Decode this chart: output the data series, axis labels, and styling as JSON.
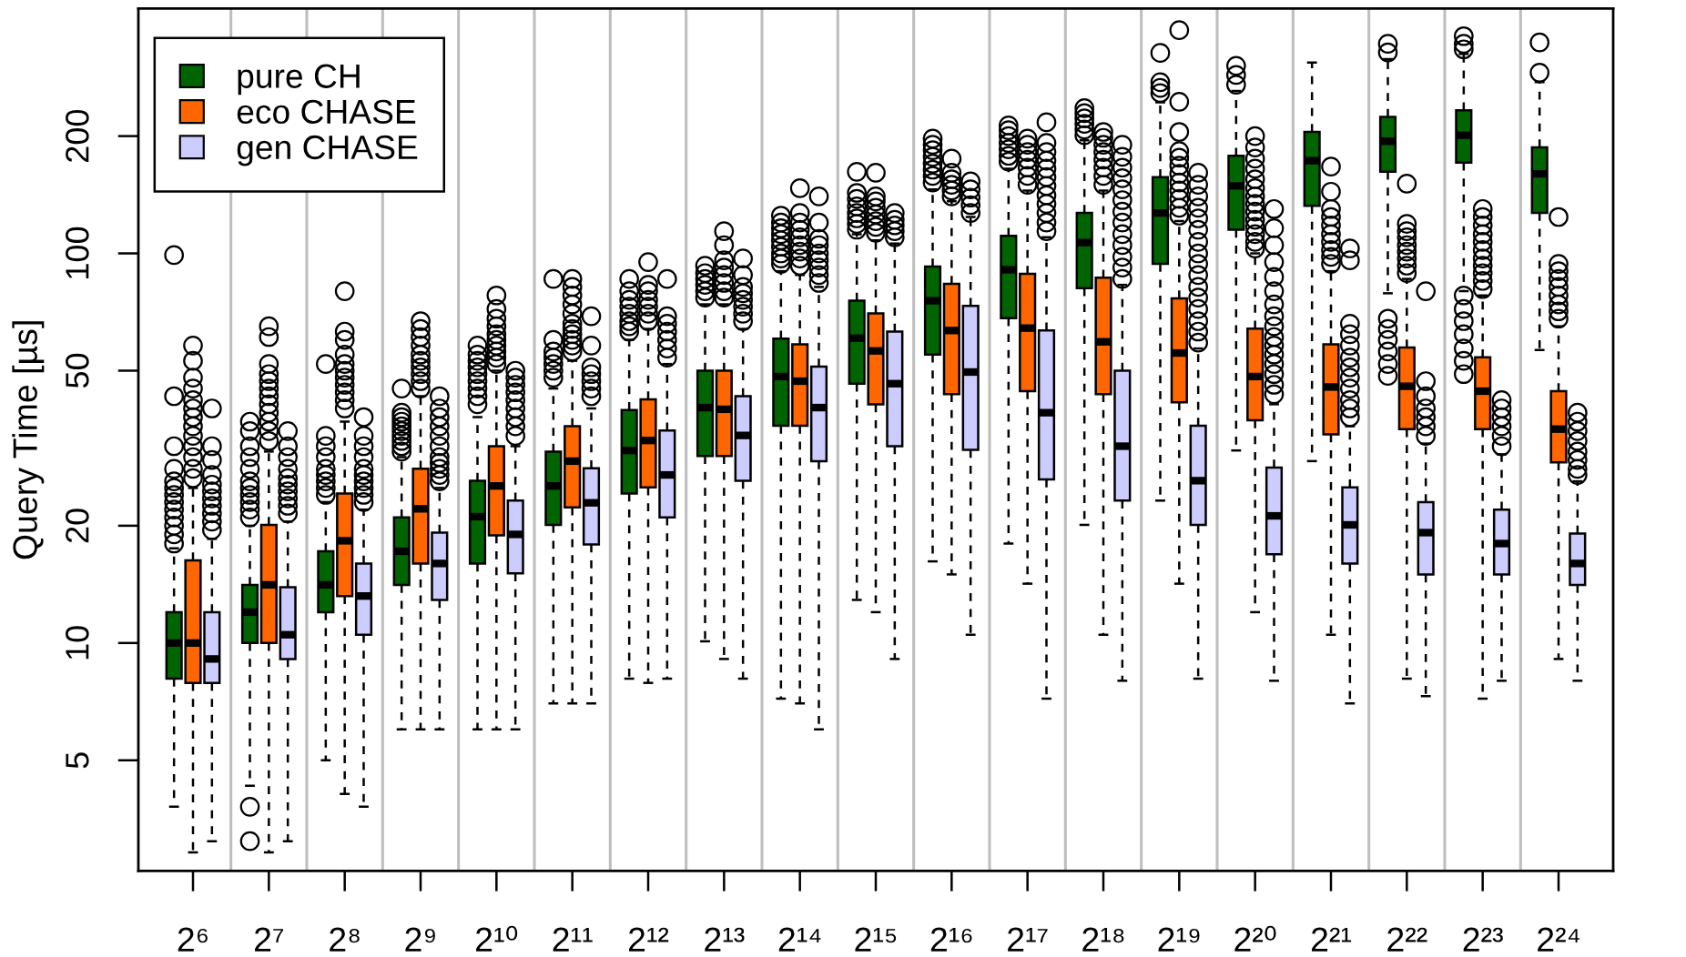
{
  "chart_data": {
    "type": "box",
    "ylabel": "Query Time [µs]",
    "log": true,
    "ylim": [
      2.6,
      425
    ],
    "yticks": [
      5,
      10,
      20,
      50,
      100,
      200
    ],
    "grid": "x",
    "legend": "top left",
    "line_style": "dashed",
    "marker": "circle",
    "categories": [
      "2⁶",
      "2⁷",
      "2⁸",
      "2⁹",
      "2¹⁰",
      "2¹¹",
      "2¹²",
      "2¹³",
      "2¹⁴",
      "2¹⁵",
      "2¹⁶",
      "2¹⁷",
      "2¹⁸",
      "2¹⁹",
      "2²⁰",
      "2²¹",
      "2²²",
      "2²³",
      "2²⁴"
    ],
    "series": [
      {
        "name": "pure CH",
        "color": "#006400",
        "boxes": [
          {
            "low": 3.8,
            "q1": 8.1,
            "median": 10,
            "q3": 12,
            "high": 17.5,
            "outliers": [
              18,
              19,
              20,
              21,
              22,
              23,
              24,
              25,
              26,
              28,
              32,
              43,
              99
            ]
          },
          {
            "low": 4.3,
            "q1": 10,
            "median": 12,
            "q3": 14.1,
            "high": 20,
            "outliers": [
              3.1,
              3.8,
              21,
              22,
              23,
              24,
              25,
              26,
              28,
              30,
              32,
              35,
              37
            ]
          },
          {
            "low": 5.0,
            "q1": 12,
            "median": 14.1,
            "q3": 17.2,
            "high": 23,
            "outliers": [
              24,
              25,
              26,
              27,
              28,
              30,
              32,
              34,
              52
            ]
          },
          {
            "low": 6.0,
            "q1": 14.1,
            "median": 17.2,
            "q3": 21,
            "high": 30,
            "outliers": [
              31,
              32,
              33,
              34,
              35,
              36,
              37,
              38,
              39,
              45
            ]
          },
          {
            "low": 6.0,
            "q1": 16,
            "median": 21.1,
            "q3": 26.1,
            "high": 38,
            "outliers": [
              41,
              43,
              45,
              47,
              49,
              51,
              53,
              55,
              58
            ]
          },
          {
            "low": 7.0,
            "q1": 20.1,
            "median": 25.3,
            "q3": 31,
            "high": 45,
            "outliers": [
              48,
              50,
              52,
              54,
              56,
              60,
              86
            ]
          },
          {
            "low": 8.1,
            "q1": 24.2,
            "median": 31.2,
            "q3": 39.6,
            "high": 60,
            "outliers": [
              63,
              65,
              67,
              70,
              73,
              76,
              80,
              86
            ]
          },
          {
            "low": 10.1,
            "q1": 30.2,
            "median": 40.2,
            "q3": 50,
            "high": 74,
            "outliers": [
              77,
              80,
              83,
              86,
              89,
              93
            ]
          },
          {
            "low": 7.2,
            "q1": 36.1,
            "median": 48.3,
            "q3": 60.4,
            "high": 90,
            "outliers": [
              94,
              97,
              100,
              104,
              108,
              112,
              116,
              120,
              125
            ]
          },
          {
            "low": 12.9,
            "q1": 46.3,
            "median": 60.6,
            "q3": 75.6,
            "high": 112,
            "outliers": [
              115,
              119,
              123,
              127,
              132,
              138,
              143,
              162
            ]
          },
          {
            "low": 16.2,
            "q1": 55,
            "median": 75.6,
            "q3": 92.5,
            "high": 146,
            "outliers": [
              152,
              158,
              164,
              170,
              177,
              184,
              190,
              197
            ]
          },
          {
            "low": 18,
            "q1": 68.2,
            "median": 90.8,
            "q3": 111,
            "high": 165,
            "outliers": [
              172,
              178,
              185,
              192,
              200,
              207,
              213
            ]
          },
          {
            "low": 20.1,
            "q1": 81.4,
            "median": 106.6,
            "q3": 127,
            "high": 195,
            "outliers": [
              201,
              208,
              215,
              222,
              229,
              236
            ]
          },
          {
            "low": 23.2,
            "q1": 94,
            "median": 127,
            "q3": 157,
            "high": 244,
            "outliers": [
              258,
              266,
              275,
              327
            ]
          },
          {
            "low": 31.2,
            "q1": 115,
            "median": 149,
            "q3": 178,
            "high": 261,
            "outliers": [
              271,
              287,
              303
            ]
          },
          {
            "low": 29.3,
            "q1": 132.5,
            "median": 173,
            "q3": 205,
            "high": 309
          },
          {
            "low": 79,
            "q1": 162,
            "median": 194,
            "q3": 224,
            "high": 315,
            "outliers": [
              48.5,
              52,
              56,
              60,
              64,
              68,
              328,
              345
            ]
          },
          {
            "low": 80,
            "q1": 171,
            "median": 201,
            "q3": 233,
            "high": 325,
            "outliers": [
              49,
              53,
              57,
              62,
              67,
              72,
              78,
              334,
              345,
              361
            ]
          },
          {
            "low": 56.5,
            "q1": 127,
            "median": 160,
            "q3": 187,
            "high": 275,
            "outliers": [
              291,
              348
            ]
          }
        ]
      },
      {
        "name": "eco CHASE",
        "color": "#ff6600",
        "boxes": [
          {
            "low": 2.9,
            "q1": 7.9,
            "median": 10,
            "q3": 16.3,
            "high": 25,
            "outliers": [
              26.5,
              28,
              30,
              32,
              34,
              36,
              38,
              40,
              42,
              45,
              48,
              53,
              58
            ]
          },
          {
            "low": 2.9,
            "q1": 10,
            "median": 14.1,
            "q3": 20.1,
            "high": 31,
            "outliers": [
              33,
              35,
              37,
              39,
              41,
              43,
              45,
              47,
              49,
              52,
              61,
              65
            ]
          },
          {
            "low": 4.1,
            "q1": 13.2,
            "median": 18.3,
            "q3": 24.2,
            "high": 37,
            "outliers": [
              40,
              42,
              44,
              46,
              48,
              50,
              52,
              55,
              60,
              63,
              80
            ]
          },
          {
            "low": 6.0,
            "q1": 16,
            "median": 22.1,
            "q3": 28,
            "high": 43,
            "outliers": [
              45,
              47,
              49,
              51,
              53,
              55,
              58,
              61,
              64,
              67
            ]
          },
          {
            "low": 6.0,
            "q1": 18.9,
            "median": 25.3,
            "q3": 32,
            "high": 50,
            "outliers": [
              52,
              54,
              56,
              58,
              60,
              62,
              65,
              68,
              72,
              78
            ]
          },
          {
            "low": 7.0,
            "q1": 22.3,
            "median": 29.3,
            "q3": 36,
            "high": 53,
            "outliers": [
              56,
              58,
              60,
              62,
              64,
              66,
              70,
              74,
              78,
              82,
              86
            ]
          },
          {
            "low": 7.9,
            "q1": 25.1,
            "median": 33.1,
            "q3": 42.2,
            "high": 64,
            "outliers": [
              67,
              70,
              73,
              76,
              80,
              83,
              95
            ]
          },
          {
            "low": 9.1,
            "q1": 30.2,
            "median": 39.8,
            "q3": 50,
            "high": 74,
            "outliers": [
              77,
              80,
              84,
              88,
              92,
              96,
              105,
              114
            ]
          },
          {
            "low": 7.0,
            "q1": 36.1,
            "median": 47,
            "q3": 58.4,
            "high": 88,
            "outliers": [
              93,
              97,
              101,
              105,
              110,
              115,
              120,
              127,
              147
            ]
          },
          {
            "low": 12,
            "q1": 41,
            "median": 56.2,
            "q3": 70.1,
            "high": 108,
            "outliers": [
              113,
              117,
              121,
              126,
              131,
              136,
              140,
              161
            ]
          },
          {
            "low": 15,
            "q1": 43.5,
            "median": 63.4,
            "q3": 83.5,
            "high": 136,
            "outliers": [
              140,
              145,
              150,
              155,
              161,
              175
            ]
          },
          {
            "low": 14.2,
            "q1": 44.3,
            "median": 64.3,
            "q3": 88.6,
            "high": 145,
            "outliers": [
              150,
              158,
              166,
              174,
              182,
              190,
              197
            ]
          },
          {
            "low": 10.5,
            "q1": 43.5,
            "median": 59.3,
            "q3": 86.6,
            "high": 145,
            "outliers": [
              150,
              158,
              166,
              174,
              182,
              190,
              198,
              205
            ]
          },
          {
            "low": 14.2,
            "q1": 41.5,
            "median": 55.5,
            "q3": 76.6,
            "high": 121,
            "outliers": [
              125,
              131,
              138,
              145,
              152,
              160,
              168,
              176,
              183,
              205,
              245,
              374
            ]
          },
          {
            "low": 12,
            "q1": 37.3,
            "median": 48.3,
            "q3": 64.1,
            "high": 100,
            "outliers": [
              103,
              107,
              112,
              117,
              122,
              128,
              134,
              140,
              147,
              155,
              165,
              175,
              187,
              200
            ]
          },
          {
            "low": 10.5,
            "q1": 34.3,
            "median": 45.4,
            "q3": 58.4,
            "high": 90,
            "outliers": [
              94,
              98,
              102,
              107,
              112,
              118,
              124,
              130,
              144,
              167
            ]
          },
          {
            "low": 8.1,
            "q1": 35.4,
            "median": 45.6,
            "q3": 57.3,
            "high": 86,
            "outliers": [
              89,
              93,
              97,
              101,
              105,
              110,
              114,
              119,
              151
            ]
          },
          {
            "low": 7.2,
            "q1": 35.4,
            "median": 44.3,
            "q3": 54.1,
            "high": 78,
            "outliers": [
              81,
              85,
              89,
              93,
              97,
              102,
              107,
              112,
              118,
              124,
              130
            ]
          },
          {
            "low": 9.1,
            "q1": 29.1,
            "median": 35.4,
            "q3": 44.3,
            "high": 65,
            "outliers": [
              68,
              71,
              74,
              78,
              82,
              86,
              90,
              94,
              124
            ]
          }
        ]
      },
      {
        "name": "gen CHASE",
        "color": "#ccccff",
        "boxes": [
          {
            "low": 3.1,
            "q1": 7.9,
            "median": 9.1,
            "q3": 12,
            "high": 18.5,
            "outliers": [
              19.5,
              20.5,
              21.5,
              22.5,
              23.5,
              24.5,
              25.5,
              27,
              29.5,
              32,
              40
            ]
          },
          {
            "low": 3.1,
            "q1": 9.1,
            "median": 10.5,
            "q3": 13.9,
            "high": 20.5,
            "outliers": [
              21.5,
              22.5,
              23.5,
              24.5,
              25.5,
              26.5,
              28,
              30,
              32,
              35
            ]
          },
          {
            "low": 3.8,
            "q1": 10.5,
            "median": 13.2,
            "q3": 16,
            "high": 22,
            "outliers": [
              23,
              24,
              25,
              26,
              27,
              28,
              30,
              32,
              34,
              38
            ]
          },
          {
            "low": 6.0,
            "q1": 12.9,
            "median": 16,
            "q3": 19.2,
            "high": 25,
            "outliers": [
              26,
              27,
              28,
              29,
              30,
              32,
              34,
              36,
              38,
              40,
              43
            ]
          },
          {
            "low": 6.0,
            "q1": 15.1,
            "median": 19,
            "q3": 23.2,
            "high": 32,
            "outliers": [
              34,
              36,
              38,
              40,
              42,
              44,
              46,
              48,
              50
            ]
          },
          {
            "low": 7.0,
            "q1": 17.9,
            "median": 22.9,
            "q3": 28.1,
            "high": 40,
            "outliers": [
              43,
              45,
              47,
              49,
              51,
              58,
              69
            ]
          },
          {
            "low": 8.1,
            "q1": 21,
            "median": 27,
            "q3": 35.1,
            "high": 52,
            "outliers": [
              54,
              57,
              60,
              63,
              66,
              69,
              86
            ]
          },
          {
            "low": 8.1,
            "q1": 26.1,
            "median": 34.1,
            "q3": 43,
            "high": 64,
            "outliers": [
              67,
              70,
              73,
              76,
              79,
              82,
              88,
              97
            ]
          },
          {
            "low": 6.0,
            "q1": 29.3,
            "median": 40.2,
            "q3": 51.2,
            "high": 82,
            "outliers": [
              84,
              88,
              92,
              96,
              100,
              105,
              109,
              120,
              140
            ]
          },
          {
            "low": 9.1,
            "q1": 32,
            "median": 46.3,
            "q3": 63,
            "high": 106,
            "outliers": [
              110,
              114,
              118,
              122,
              127
            ]
          },
          {
            "low": 10.5,
            "q1": 31.3,
            "median": 49.6,
            "q3": 73.3,
            "high": 124,
            "outliers": [
              127,
              133,
              139,
              146,
              153
            ]
          },
          {
            "low": 7.2,
            "q1": 26.3,
            "median": 39,
            "q3": 63.4,
            "high": 110,
            "outliers": [
              114,
              120,
              127,
              134,
              141,
              149,
              157,
              165,
              173,
              182,
              192,
              217
            ]
          },
          {
            "low": 8.0,
            "q1": 23.2,
            "median": 32,
            "q3": 50,
            "high": 83,
            "outliers": [
              86,
              92,
              98,
              105,
              112,
              120,
              128,
              137,
              146,
              156,
              166,
              177,
              190
            ]
          },
          {
            "low": 8.1,
            "q1": 20.1,
            "median": 26.1,
            "q3": 36.1,
            "high": 57,
            "outliers": [
              59,
              63,
              67,
              72,
              77,
              82,
              88,
              94,
              100,
              107,
              115,
              123,
              131,
              140,
              150,
              161
            ]
          },
          {
            "low": 8.0,
            "q1": 16.9,
            "median": 21.2,
            "q3": 28.2,
            "high": 41,
            "outliers": [
              43.5,
              46,
              49,
              52,
              55,
              58,
              61,
              65,
              69,
              74,
              80,
              87,
              95,
              105,
              116,
              130
            ]
          },
          {
            "low": 7.0,
            "q1": 16,
            "median": 20.1,
            "q3": 25.1,
            "high": 36,
            "outliers": [
              38,
              40,
              42,
              45,
              48,
              51,
              54,
              58,
              62,
              66,
              96,
              103
            ]
          },
          {
            "low": 7.3,
            "q1": 15,
            "median": 19.2,
            "q3": 23,
            "high": 32.5,
            "outliers": [
              34,
              36,
              38,
              40,
              43,
              47,
              80
            ]
          },
          {
            "low": 8.0,
            "q1": 15,
            "median": 18,
            "q3": 22,
            "high": 30.5,
            "outliers": [
              32,
              34,
              36,
              38,
              40,
              42
            ]
          },
          {
            "low": 8.0,
            "q1": 14.1,
            "median": 16,
            "q3": 19.1,
            "high": 26,
            "outliers": [
              27,
              28,
              29.5,
              31,
              33,
              35,
              37,
              39
            ]
          }
        ]
      }
    ]
  }
}
